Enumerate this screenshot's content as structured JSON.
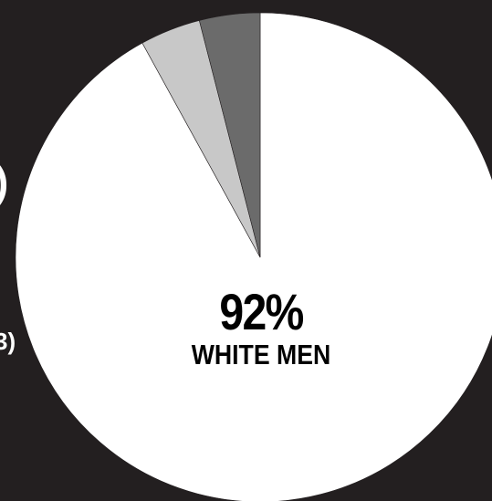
{
  "chart_data": {
    "type": "pie",
    "start_angle_deg": 0,
    "direction": "clockwise",
    "slices": [
      {
        "label": "WHITE MEN",
        "value": 92,
        "color": "#ffffff"
      },
      {
        "label": "",
        "value": 4,
        "color": "#c8c8c8"
      },
      {
        "label": "",
        "value": 4,
        "color": "#6b6b6b"
      }
    ],
    "center_label": {
      "value_text": "92%",
      "name_text": "WHITE MEN"
    }
  },
  "edge_text": {
    "left_paren_upper": ")",
    "left_paren_lower": "3)"
  },
  "colors": {
    "background": "#231f20",
    "slice_border": "#231f20"
  }
}
